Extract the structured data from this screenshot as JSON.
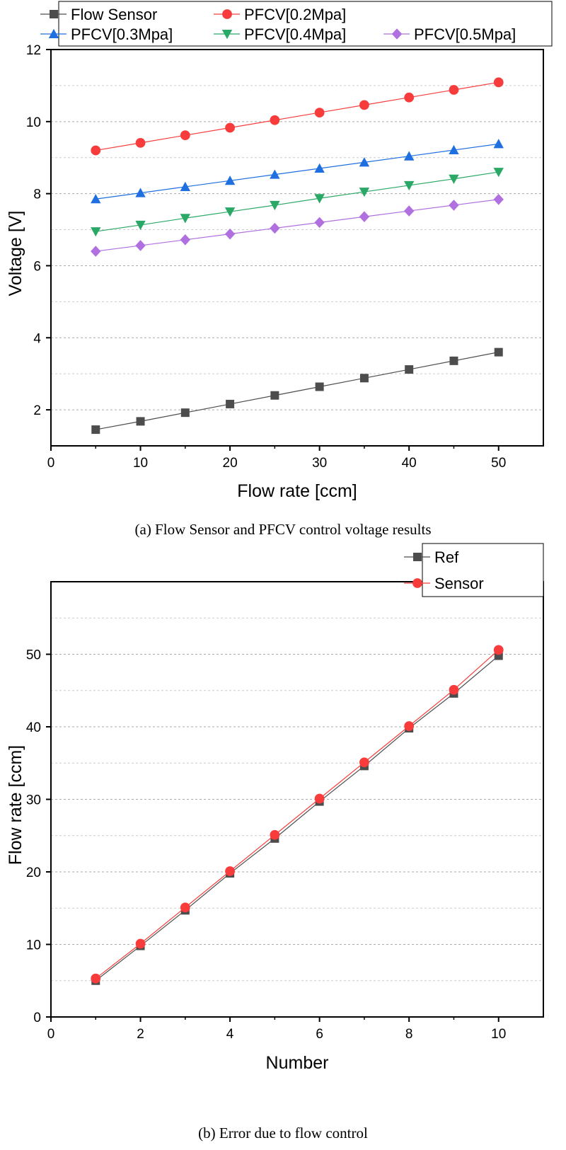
{
  "chart_data": [
    {
      "type": "line",
      "caption": "(a) Flow Sensor and PFCV control voltage results",
      "xlabel": "Flow rate [ccm]",
      "ylabel": "Voltage [V]",
      "xlim": [
        0,
        55
      ],
      "ylim": [
        1,
        12
      ],
      "xticks": [
        0,
        10,
        20,
        30,
        40,
        50
      ],
      "yticks": [
        2,
        4,
        6,
        8,
        10,
        12
      ],
      "grid": true,
      "legend_position": "top",
      "x": [
        5,
        10,
        15,
        20,
        25,
        30,
        35,
        40,
        45,
        50
      ],
      "series": [
        {
          "name": "Flow Sensor",
          "color": "#4d4d4d",
          "marker": "square",
          "values": [
            1.45,
            1.68,
            1.92,
            2.16,
            2.4,
            2.64,
            2.88,
            3.12,
            3.36,
            3.6
          ]
        },
        {
          "name": "PFCV[0.2Mpa]",
          "color": "#f83c3c",
          "marker": "circle",
          "values": [
            9.2,
            9.41,
            9.62,
            9.83,
            10.04,
            10.25,
            10.46,
            10.67,
            10.88,
            11.09
          ]
        },
        {
          "name": "PFCV[0.3Mpa]",
          "color": "#1f6fe0",
          "marker": "triangle-up",
          "values": [
            7.85,
            8.02,
            8.19,
            8.36,
            8.53,
            8.7,
            8.87,
            9.04,
            9.21,
            9.38
          ]
        },
        {
          "name": "PFCV[0.4Mpa]",
          "color": "#2aa866",
          "marker": "triangle-down",
          "values": [
            6.95,
            7.13,
            7.32,
            7.5,
            7.68,
            7.87,
            8.05,
            8.23,
            8.41,
            8.6
          ]
        },
        {
          "name": "PFCV[0.5Mpa]",
          "color": "#b070e0",
          "marker": "diamond",
          "values": [
            6.4,
            6.56,
            6.72,
            6.88,
            7.04,
            7.2,
            7.36,
            7.52,
            7.68,
            7.84
          ]
        }
      ]
    },
    {
      "type": "line",
      "caption": "(b) Error due to flow control",
      "xlabel": "Number",
      "ylabel": "Flow rate [ccm]",
      "xlim": [
        0,
        11
      ],
      "ylim": [
        0,
        60
      ],
      "xticks": [
        0,
        2,
        4,
        6,
        8,
        10
      ],
      "yticks": [
        0,
        10,
        20,
        30,
        40,
        50
      ],
      "grid": true,
      "legend_position": "top-right",
      "x": [
        1,
        2,
        3,
        4,
        5,
        6,
        7,
        8,
        9,
        10
      ],
      "series": [
        {
          "name": "Ref",
          "color": "#4d4d4d",
          "marker": "square",
          "values": [
            5.0,
            9.8,
            14.7,
            19.8,
            24.6,
            29.7,
            34.6,
            39.8,
            44.6,
            49.8
          ]
        },
        {
          "name": "Sensor",
          "color": "#f83c3c",
          "marker": "circle",
          "values": [
            5.3,
            10.1,
            15.1,
            20.1,
            25.1,
            30.1,
            35.1,
            40.1,
            45.1,
            50.6
          ]
        }
      ]
    }
  ]
}
